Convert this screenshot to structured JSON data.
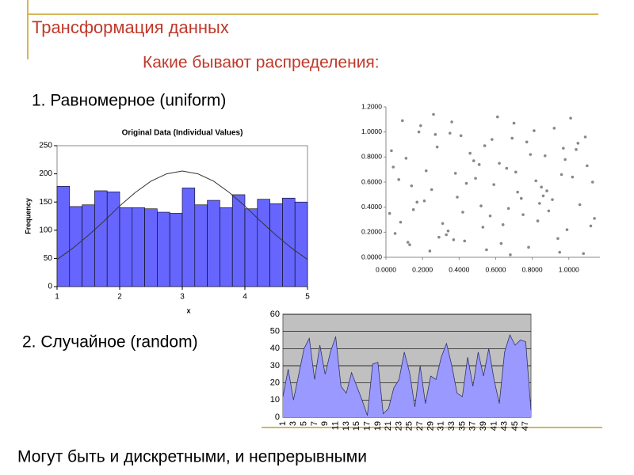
{
  "header": {
    "title": "Трансформация данных",
    "subtitle": "Какие бывают распределения:"
  },
  "items": [
    "1. Равномерное (uniform)",
    "2. Случайное (random)"
  ],
  "footer": "Могут быть и дискретными, и непрерывными",
  "chart_data": [
    {
      "type": "histogram",
      "title": "Original Data (Individual Values)",
      "x_label": "x",
      "y_label": "Frequency",
      "bins": [
        1.0,
        1.2,
        1.4,
        1.6,
        1.8,
        2.0,
        2.2,
        2.4,
        2.6,
        2.8,
        3.0,
        3.2,
        3.4,
        3.6,
        3.8,
        4.0,
        4.2,
        4.4,
        4.6,
        4.8,
        5.0
      ],
      "values": [
        178,
        142,
        145,
        170,
        168,
        140,
        140,
        138,
        132,
        130,
        175,
        145,
        153,
        140,
        163,
        138,
        155,
        147,
        157,
        150
      ],
      "color": "#6666ff",
      "curve": {
        "x": [
          1,
          1.25,
          1.5,
          1.75,
          2,
          2.25,
          2.5,
          2.75,
          3,
          3.25,
          3.5,
          3.75,
          4,
          4.25,
          4.5,
          4.75,
          5
        ],
        "values": [
          48,
          68,
          91,
          116,
          143,
          167,
          187,
          200,
          205,
          200,
          187,
          167,
          143,
          116,
          91,
          68,
          48
        ],
        "color": "#333333"
      },
      "xlim": [
        1,
        5
      ],
      "xticks": [
        1,
        2,
        3,
        4,
        5
      ],
      "ylim": [
        0,
        250
      ],
      "yticks": [
        0,
        50,
        100,
        150,
        200,
        250
      ]
    },
    {
      "type": "scatter",
      "color": "#888888",
      "x": [
        0.03,
        0.12,
        0.25,
        0.41,
        0.57,
        0.66,
        0.78,
        0.91,
        1.05,
        1.12,
        0.07,
        0.19,
        0.33,
        0.48,
        0.52,
        0.69,
        0.83,
        0.96,
        1.08,
        0.15,
        0.28,
        0.37,
        0.44,
        0.61,
        0.74,
        0.87,
        0.99,
        0.02,
        0.22,
        0.35,
        0.55,
        0.72,
        0.81,
        0.94,
        1.1,
        0.09,
        0.17,
        0.31,
        0.46,
        0.59,
        0.63,
        0.77,
        0.89,
        1.02,
        0.05,
        0.26,
        0.39,
        0.51,
        0.68,
        0.85,
        0.97,
        1.14,
        0.11,
        0.24,
        0.42,
        0.58,
        0.71,
        0.92,
        1.06,
        0.14,
        0.29,
        0.36,
        0.49,
        0.64,
        0.79,
        0.86,
        1.01,
        0.04,
        0.21,
        0.34,
        0.54,
        0.67,
        0.82,
        0.95,
        1.09,
        0.08,
        0.18,
        0.43,
        0.62,
        0.75,
        0.88,
        1.04,
        0.13,
        0.27,
        0.38,
        0.53,
        0.7,
        0.84,
        0.98,
        1.13
      ],
      "y": [
        0.85,
        0.12,
        0.54,
        0.97,
        0.33,
        0.71,
        0.08,
        0.46,
        0.91,
        0.25,
        0.62,
        1.05,
        0.18,
        0.77,
        0.41,
        0.95,
        0.29,
        0.66,
        0.03,
        0.38,
        0.88,
        0.14,
        0.59,
        1.12,
        0.47,
        0.81,
        0.22,
        0.35,
        0.69,
        0.99,
        0.06,
        0.52,
        1.01,
        0.15,
        0.73,
        1.09,
        0.44,
        0.27,
        0.83,
        0.58,
        0.11,
        0.92,
        0.37,
        0.64,
        0.19,
        1.14,
        0.48,
        0.74,
        0.02,
        0.56,
        0.87,
        0.31,
        0.79,
        0.05,
        0.36,
        0.94,
        0.68,
        1.03,
        0.42,
        0.57,
        0.16,
        1.08,
        0.63,
        0.26,
        0.82,
        0.49,
        1.11,
        0.72,
        0.45,
        0.21,
        0.89,
        0.39,
        0.61,
        0.04,
        0.96,
        0.28,
        1.0,
        0.13,
        0.75,
        0.34,
        0.53,
        0.86,
        0.1,
        0.98,
        0.67,
        0.24,
        1.07,
        0.43,
        0.78,
        0.6
      ],
      "xlim": [
        0,
        1.17
      ],
      "xticks": [
        {
          "value": 0,
          "label": "0.0000"
        },
        {
          "value": 0.2,
          "label": "0.2000"
        },
        {
          "value": 0.4,
          "label": "0.4000"
        },
        {
          "value": 0.6,
          "label": "0.6000"
        },
        {
          "value": 0.8,
          "label": "0.8000"
        },
        {
          "value": 1,
          "label": "1.0000"
        }
      ],
      "ylim": [
        0,
        1.2
      ],
      "yticks": [
        {
          "value": 0,
          "label": "0.0000"
        },
        {
          "value": 0.2,
          "label": "0.2000"
        },
        {
          "value": 0.4,
          "label": "0.4000"
        },
        {
          "value": 0.6,
          "label": "0.6000"
        },
        {
          "value": 0.8,
          "label": "0.8000"
        },
        {
          "value": 1,
          "label": "1.0000"
        },
        {
          "value": 1.2,
          "label": "1.2000"
        }
      ]
    },
    {
      "type": "area",
      "color": "#9999ff",
      "background": "#c0c0c0",
      "grid": true,
      "categories": [
        1,
        null,
        3,
        null,
        5,
        null,
        7,
        null,
        9,
        null,
        11,
        null,
        13,
        null,
        15,
        null,
        17,
        null,
        19,
        null,
        21,
        null,
        23,
        null,
        25,
        null,
        27,
        null,
        29,
        null,
        31,
        null,
        33,
        null,
        35,
        null,
        37,
        null,
        39,
        null,
        41,
        null,
        43,
        null,
        45,
        null,
        47,
        null
      ],
      "values": [
        12,
        28,
        10,
        25,
        40,
        46,
        22,
        42,
        25,
        38,
        47,
        18,
        14,
        26,
        18,
        10,
        1,
        31,
        32,
        2,
        5,
        17,
        22,
        38,
        26,
        6,
        30,
        8,
        24,
        22,
        35,
        43,
        30,
        14,
        12,
        35,
        18,
        38,
        24,
        40,
        22,
        8,
        38,
        48,
        42,
        45,
        44,
        4
      ],
      "ylim": [
        0,
        60
      ],
      "yticks": [
        0,
        10,
        20,
        30,
        40,
        50,
        60
      ]
    }
  ]
}
